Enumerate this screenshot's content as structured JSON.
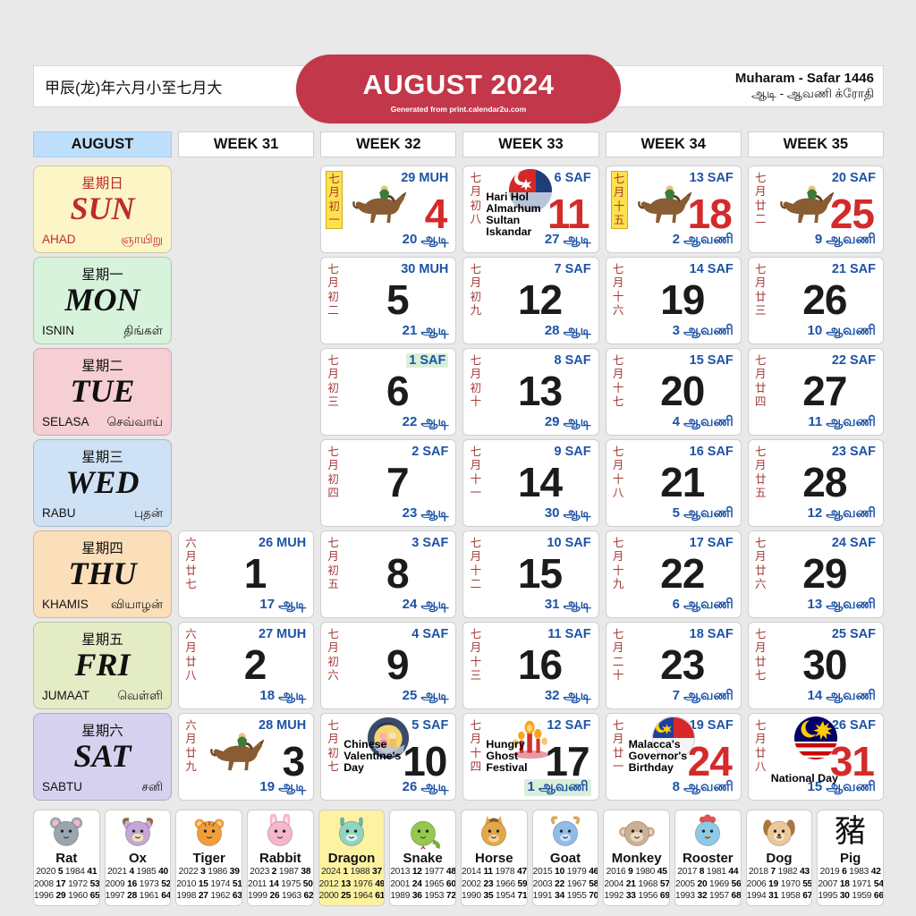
{
  "header": {
    "chinese_year": "甲辰(龙)年六月小至七月大",
    "title": "AUGUST 2024",
    "credit": "Generated from print.calendar2u.com",
    "hijri_range": "Muharam - Safar 1446",
    "tamil_range": "ஆடி - ஆவணி க்ரோதி"
  },
  "tabs": {
    "month": "AUGUST",
    "weeks": [
      "WEEK 31",
      "WEEK 32",
      "WEEK 33",
      "WEEK 34",
      "WEEK 35"
    ]
  },
  "day_labels": [
    {
      "key": "sun",
      "cn": "星期日",
      "en": "SUN",
      "ms": "AHAD",
      "ta": "ஞாயிறு",
      "bg": "#fcf5c6",
      "red": true
    },
    {
      "key": "mon",
      "cn": "星期一",
      "en": "MON",
      "ms": "ISNIN",
      "ta": "திங்கள்",
      "bg": "#d8f3dc",
      "red": false
    },
    {
      "key": "tue",
      "cn": "星期二",
      "en": "TUE",
      "ms": "SELASA",
      "ta": "செவ்வாய்",
      "bg": "#f5cfd4",
      "red": false
    },
    {
      "key": "wed",
      "cn": "星期三",
      "en": "WED",
      "ms": "RABU",
      "ta": "புதன்",
      "bg": "#cfe1f4",
      "red": false
    },
    {
      "key": "thu",
      "cn": "星期四",
      "en": "THU",
      "ms": "KHAMIS",
      "ta": "வியாழன்",
      "bg": "#fbdfbb",
      "red": false
    },
    {
      "key": "fri",
      "cn": "星期五",
      "en": "FRI",
      "ms": "JUMAAT",
      "ta": "வெள்ளி",
      "bg": "#e4ecc5",
      "red": false
    },
    {
      "key": "sat",
      "cn": "星期六",
      "en": "SAT",
      "ms": "SABTU",
      "ta": "சனி",
      "bg": "#d6d1ee",
      "red": false
    }
  ],
  "grid_rows": [
    {
      "day": "sun",
      "cells": [
        null,
        {
          "day": 4,
          "lunar": "七月初一",
          "lunar_hl": true,
          "islamic": "29 MUH",
          "tamil": "20 ஆடி",
          "red": true,
          "icon": "horse-racing"
        },
        {
          "day": 11,
          "lunar": "七月初八",
          "islamic": "6 SAF",
          "tamil": "27 ஆடி",
          "red": true,
          "icon": "johor-flag",
          "event": "Hari Hol Almarhum Sultan Iskandar"
        },
        {
          "day": 18,
          "lunar": "七月十五",
          "lunar_hl": true,
          "islamic": "13 SAF",
          "tamil": "2 ஆவணி",
          "red": true,
          "icon": "horse-racing"
        },
        {
          "day": 25,
          "lunar": "七月廿二",
          "islamic": "20 SAF",
          "tamil": "9 ஆவணி",
          "red": true,
          "icon": "horse-racing"
        }
      ]
    },
    {
      "day": "mon",
      "cells": [
        null,
        {
          "day": 5,
          "lunar": "七月初二",
          "islamic": "30 MUH",
          "tamil": "21 ஆடி"
        },
        {
          "day": 12,
          "lunar": "七月初九",
          "islamic": "7 SAF",
          "tamil": "28 ஆடி"
        },
        {
          "day": 19,
          "lunar": "七月十六",
          "islamic": "14 SAF",
          "tamil": "3 ஆவணி"
        },
        {
          "day": 26,
          "lunar": "七月廿三",
          "islamic": "21 SAF",
          "tamil": "10 ஆவணி"
        }
      ]
    },
    {
      "day": "tue",
      "cells": [
        null,
        {
          "day": 6,
          "lunar": "七月初三",
          "islamic": "1 SAF",
          "islamic_hl": true,
          "tamil": "22 ஆடி"
        },
        {
          "day": 13,
          "lunar": "七月初十",
          "islamic": "8 SAF",
          "tamil": "29 ஆடி"
        },
        {
          "day": 20,
          "lunar": "七月十七",
          "islamic": "15 SAF",
          "tamil": "4 ஆவணி"
        },
        {
          "day": 27,
          "lunar": "七月廿四",
          "islamic": "22 SAF",
          "tamil": "11 ஆவணி"
        }
      ]
    },
    {
      "day": "wed",
      "cells": [
        null,
        {
          "day": 7,
          "lunar": "七月初四",
          "islamic": "2 SAF",
          "tamil": "23 ஆடி"
        },
        {
          "day": 14,
          "lunar": "七月十一",
          "islamic": "9 SAF",
          "tamil": "30 ஆடி"
        },
        {
          "day": 21,
          "lunar": "七月十八",
          "islamic": "16 SAF",
          "tamil": "5 ஆவணி"
        },
        {
          "day": 28,
          "lunar": "七月廿五",
          "islamic": "23 SAF",
          "tamil": "12 ஆவணி"
        }
      ]
    },
    {
      "day": "thu",
      "cells": [
        {
          "day": 1,
          "lunar": "六月廿七",
          "islamic": "26 MUH",
          "tamil": "17 ஆடி"
        },
        {
          "day": 8,
          "lunar": "七月初五",
          "islamic": "3 SAF",
          "tamil": "24 ஆடி"
        },
        {
          "day": 15,
          "lunar": "七月十二",
          "islamic": "10 SAF",
          "tamil": "31 ஆடி"
        },
        {
          "day": 22,
          "lunar": "七月十九",
          "islamic": "17 SAF",
          "tamil": "6 ஆவணி"
        },
        {
          "day": 29,
          "lunar": "七月廿六",
          "islamic": "24 SAF",
          "tamil": "13 ஆவணி"
        }
      ]
    },
    {
      "day": "fri",
      "cells": [
        {
          "day": 2,
          "lunar": "六月廿八",
          "islamic": "27 MUH",
          "tamil": "18 ஆடி"
        },
        {
          "day": 9,
          "lunar": "七月初六",
          "islamic": "4 SAF",
          "tamil": "25 ஆடி"
        },
        {
          "day": 16,
          "lunar": "七月十三",
          "islamic": "11 SAF",
          "tamil": "32 ஆடி"
        },
        {
          "day": 23,
          "lunar": "七月二十",
          "islamic": "18 SAF",
          "tamil": "7 ஆவணி"
        },
        {
          "day": 30,
          "lunar": "七月廿七",
          "islamic": "25 SAF",
          "tamil": "14 ஆவணி"
        }
      ]
    },
    {
      "day": "sat",
      "cells": [
        {
          "day": 3,
          "lunar": "六月廿九",
          "islamic": "28 MUH",
          "tamil": "19 ஆடி",
          "icon": "horse-racing"
        },
        {
          "day": 10,
          "lunar": "七月初七",
          "islamic": "5 SAF",
          "tamil": "26 ஆடி",
          "icon": "chinese-valentine",
          "event": "Chinese Valentine's Day"
        },
        {
          "day": 17,
          "lunar": "七月十四",
          "islamic": "12 SAF",
          "tamil": "1 ஆவணி",
          "tamil_hl": true,
          "icon": "hungry-ghost",
          "event": "Hungry Ghost Festival"
        },
        {
          "day": 24,
          "lunar": "七月廿一",
          "islamic": "19 SAF",
          "tamil": "8 ஆவணி",
          "red": true,
          "icon": "malacca-flag",
          "event": "Malacca's Governor's Birthday"
        },
        {
          "day": 31,
          "lunar": "七月廿八",
          "islamic": "26 SAF",
          "tamil": "15 ஆவணி",
          "red": true,
          "icon": "malaysia-flag",
          "event": "National Day"
        }
      ]
    }
  ],
  "zodiac": [
    {
      "key": "rat",
      "name": "Rat",
      "rows": [
        [
          "2020",
          "5",
          "1984",
          "41"
        ],
        [
          "2008",
          "17",
          "1972",
          "53"
        ],
        [
          "1996",
          "29",
          "1960",
          "65"
        ]
      ]
    },
    {
      "key": "ox",
      "name": "Ox",
      "rows": [
        [
          "2021",
          "4",
          "1985",
          "40"
        ],
        [
          "2009",
          "16",
          "1973",
          "52"
        ],
        [
          "1997",
          "28",
          "1961",
          "64"
        ]
      ]
    },
    {
      "key": "tiger",
      "name": "Tiger",
      "rows": [
        [
          "2022",
          "3",
          "1986",
          "39"
        ],
        [
          "2010",
          "15",
          "1974",
          "51"
        ],
        [
          "1998",
          "27",
          "1962",
          "63"
        ]
      ]
    },
    {
      "key": "rabbit",
      "name": "Rabbit",
      "rows": [
        [
          "2023",
          "2",
          "1987",
          "38"
        ],
        [
          "2011",
          "14",
          "1975",
          "50"
        ],
        [
          "1999",
          "26",
          "1963",
          "62"
        ]
      ]
    },
    {
      "key": "dragon",
      "name": "Dragon",
      "hl": true,
      "rows": [
        [
          "2024",
          "1",
          "1988",
          "37"
        ],
        [
          "2012",
          "13",
          "1976",
          "49"
        ],
        [
          "2000",
          "25",
          "1964",
          "61"
        ]
      ]
    },
    {
      "key": "snake",
      "name": "Snake",
      "rows": [
        [
          "2013",
          "12",
          "1977",
          "48"
        ],
        [
          "2001",
          "24",
          "1965",
          "60"
        ],
        [
          "1989",
          "36",
          "1953",
          "72"
        ]
      ]
    },
    {
      "key": "horse",
      "name": "Horse",
      "rows": [
        [
          "2014",
          "11",
          "1978",
          "47"
        ],
        [
          "2002",
          "23",
          "1966",
          "59"
        ],
        [
          "1990",
          "35",
          "1954",
          "71"
        ]
      ]
    },
    {
      "key": "goat",
      "name": "Goat",
      "rows": [
        [
          "2015",
          "10",
          "1979",
          "46"
        ],
        [
          "2003",
          "22",
          "1967",
          "58"
        ],
        [
          "1991",
          "34",
          "1955",
          "70"
        ]
      ]
    },
    {
      "key": "monkey",
      "name": "Monkey",
      "rows": [
        [
          "2016",
          "9",
          "1980",
          "45"
        ],
        [
          "2004",
          "21",
          "1968",
          "57"
        ],
        [
          "1992",
          "33",
          "1956",
          "69"
        ]
      ]
    },
    {
      "key": "rooster",
      "name": "Rooster",
      "rows": [
        [
          "2017",
          "8",
          "1981",
          "44"
        ],
        [
          "2005",
          "20",
          "1969",
          "56"
        ],
        [
          "1993",
          "32",
          "1957",
          "68"
        ]
      ]
    },
    {
      "key": "dog",
      "name": "Dog",
      "rows": [
        [
          "2018",
          "7",
          "1982",
          "43"
        ],
        [
          "2006",
          "19",
          "1970",
          "55"
        ],
        [
          "1994",
          "31",
          "1958",
          "67"
        ]
      ]
    },
    {
      "key": "pig",
      "name": "Pig",
      "glyph": "豬",
      "rows": [
        [
          "2019",
          "6",
          "1983",
          "42"
        ],
        [
          "2007",
          "18",
          "1971",
          "54"
        ],
        [
          "1995",
          "30",
          "1959",
          "66"
        ]
      ]
    }
  ],
  "colors": {
    "accent_red": "#c23749",
    "number_red": "#d42a2a",
    "date_blue": "#1d53a6",
    "lunar_red": "#a43b35",
    "highlight_yellow": "#ffe14d",
    "highlight_green": "#d9efd9",
    "tab_blue": "#bedffb",
    "dragon_bg": "#fcf2a2"
  }
}
